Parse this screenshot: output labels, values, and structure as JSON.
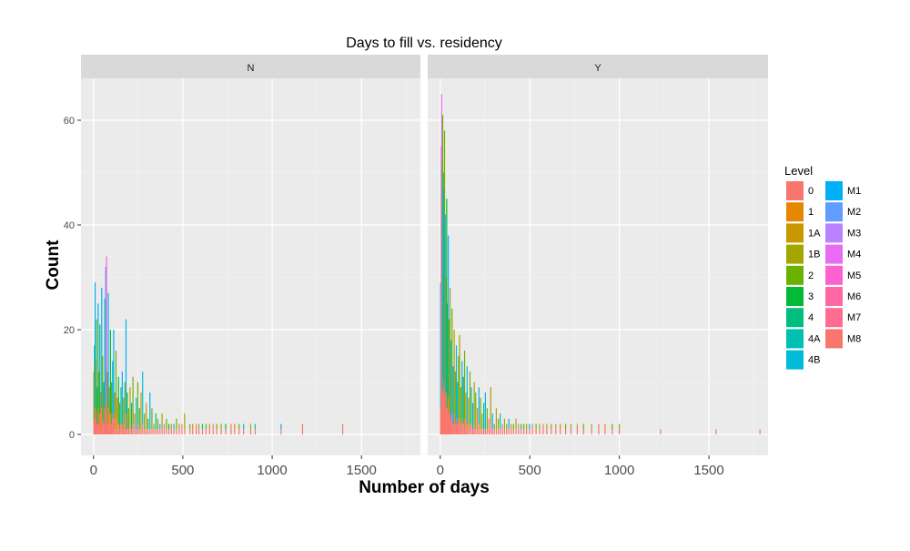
{
  "chart_data": {
    "type": "bar",
    "subtype": "stacked histogram, faceted",
    "title": "Days to fill vs. residency",
    "xlabel": "Number of days",
    "ylabel": "Count",
    "xlim": [
      -70,
      1830
    ],
    "ylim": [
      -4,
      68
    ],
    "x_ticks": [
      {
        "value": 0,
        "label": "0"
      },
      {
        "value": 500,
        "label": "500"
      },
      {
        "value": 1000,
        "label": "1000"
      },
      {
        "value": 1500,
        "label": "1500"
      }
    ],
    "y_ticks": [
      {
        "value": 0,
        "label": "0"
      },
      {
        "value": 20,
        "label": "20"
      },
      {
        "value": 40,
        "label": "40"
      },
      {
        "value": 60,
        "label": "60"
      }
    ],
    "grid": true,
    "background": "#EBEBEB",
    "legend": {
      "title": "Level",
      "position": "right",
      "columns": 2,
      "entries": [
        {
          "label": "0",
          "color": "#F8766D"
        },
        {
          "label": "1",
          "color": "#E58700"
        },
        {
          "label": "1A",
          "color": "#C99800"
        },
        {
          "label": "1B",
          "color": "#A3A500"
        },
        {
          "label": "2",
          "color": "#6BB100"
        },
        {
          "label": "3",
          "color": "#00BA38"
        },
        {
          "label": "4",
          "color": "#00BF7D"
        },
        {
          "label": "4A",
          "color": "#00C0AF"
        },
        {
          "label": "4B",
          "color": "#00BCD8"
        },
        {
          "label": "M1",
          "color": "#00B0F6"
        },
        {
          "label": "M2",
          "color": "#619CFF"
        },
        {
          "label": "M3",
          "color": "#B983FF"
        },
        {
          "label": "M4",
          "color": "#E76BF3"
        },
        {
          "label": "M5",
          "color": "#FD61D1"
        },
        {
          "label": "M6",
          "color": "#FF67A4"
        },
        {
          "label": "M7",
          "color": "#FF6C91"
        },
        {
          "label": "M8",
          "color": "#F8766D"
        }
      ]
    },
    "panels": [
      {
        "label": "N",
        "bars": [
          {
            "x": 2,
            "total": 12,
            "top": "1B"
          },
          {
            "x": 5,
            "total": 17,
            "top": "4"
          },
          {
            "x": 9,
            "total": 29,
            "top": "M1"
          },
          {
            "x": 13,
            "total": 14,
            "top": "1A"
          },
          {
            "x": 17,
            "total": 22,
            "top": "2"
          },
          {
            "x": 21,
            "total": 9,
            "top": "3"
          },
          {
            "x": 26,
            "total": 25,
            "top": "M1"
          },
          {
            "x": 31,
            "total": 12,
            "top": "2"
          },
          {
            "x": 36,
            "total": 21,
            "top": "3"
          },
          {
            "x": 41,
            "total": 8,
            "top": "1"
          },
          {
            "x": 46,
            "total": 28,
            "top": "M1"
          },
          {
            "x": 51,
            "total": 15,
            "top": "2"
          },
          {
            "x": 57,
            "total": 10,
            "top": "4"
          },
          {
            "x": 63,
            "total": 26,
            "top": "4A"
          },
          {
            "x": 68,
            "total": 32,
            "top": "M2"
          },
          {
            "x": 73,
            "total": 34,
            "top": "M5"
          },
          {
            "x": 78,
            "total": 12,
            "top": "2"
          },
          {
            "x": 83,
            "total": 27,
            "top": "M1"
          },
          {
            "x": 89,
            "total": 9,
            "top": "1B"
          },
          {
            "x": 95,
            "total": 20,
            "top": "3"
          },
          {
            "x": 101,
            "total": 10,
            "top": "2"
          },
          {
            "x": 107,
            "total": 14,
            "top": "4B"
          },
          {
            "x": 113,
            "total": 20,
            "top": "M1"
          },
          {
            "x": 119,
            "total": 8,
            "top": "1"
          },
          {
            "x": 126,
            "total": 16,
            "top": "2"
          },
          {
            "x": 133,
            "total": 7,
            "top": "1A"
          },
          {
            "x": 140,
            "total": 11,
            "top": "3"
          },
          {
            "x": 147,
            "total": 6,
            "top": "2"
          },
          {
            "x": 154,
            "total": 9,
            "top": "4A"
          },
          {
            "x": 161,
            "total": 12,
            "top": "M1"
          },
          {
            "x": 168,
            "total": 7,
            "top": "1B"
          },
          {
            "x": 175,
            "total": 10,
            "top": "2"
          },
          {
            "x": 182,
            "total": 22,
            "top": "M1"
          },
          {
            "x": 189,
            "total": 8,
            "top": "3"
          },
          {
            "x": 197,
            "total": 5,
            "top": "2"
          },
          {
            "x": 205,
            "total": 9,
            "top": "1B"
          },
          {
            "x": 213,
            "total": 6,
            "top": "4"
          },
          {
            "x": 221,
            "total": 11,
            "top": "2"
          },
          {
            "x": 230,
            "total": 4,
            "top": "1"
          },
          {
            "x": 239,
            "total": 7,
            "top": "M1"
          },
          {
            "x": 248,
            "total": 10,
            "top": "2"
          },
          {
            "x": 257,
            "total": 5,
            "top": "3"
          },
          {
            "x": 266,
            "total": 8,
            "top": "1B"
          },
          {
            "x": 275,
            "total": 12,
            "top": "4B"
          },
          {
            "x": 285,
            "total": 4,
            "top": "2"
          },
          {
            "x": 295,
            "total": 6,
            "top": "1A"
          },
          {
            "x": 305,
            "total": 3,
            "top": "3"
          },
          {
            "x": 316,
            "total": 8,
            "top": "M1"
          },
          {
            "x": 327,
            "total": 5,
            "top": "2"
          },
          {
            "x": 338,
            "total": 2,
            "top": "1B"
          },
          {
            "x": 349,
            "total": 4,
            "top": "4"
          },
          {
            "x": 360,
            "total": 3,
            "top": "2"
          },
          {
            "x": 372,
            "total": 2,
            "top": "M1"
          },
          {
            "x": 384,
            "total": 4,
            "top": "1B"
          },
          {
            "x": 396,
            "total": 2,
            "top": "0"
          },
          {
            "x": 409,
            "total": 3,
            "top": "2"
          },
          {
            "x": 422,
            "total": 2,
            "top": "3"
          },
          {
            "x": 436,
            "total": 2,
            "top": "1"
          },
          {
            "x": 450,
            "total": 2,
            "top": "4B"
          },
          {
            "x": 465,
            "total": 3,
            "top": "2"
          },
          {
            "x": 480,
            "total": 2,
            "top": "1B"
          },
          {
            "x": 495,
            "total": 2,
            "top": "0"
          },
          {
            "x": 510,
            "total": 4,
            "top": "1B"
          },
          {
            "x": 540,
            "total": 2,
            "top": "2"
          },
          {
            "x": 555,
            "total": 2,
            "top": "1"
          },
          {
            "x": 575,
            "total": 2,
            "top": "0"
          },
          {
            "x": 590,
            "total": 2,
            "top": "1B"
          },
          {
            "x": 610,
            "total": 2,
            "top": "4"
          },
          {
            "x": 630,
            "total": 2,
            "top": "2"
          },
          {
            "x": 650,
            "total": 2,
            "top": "1A"
          },
          {
            "x": 670,
            "total": 2,
            "top": "0"
          },
          {
            "x": 690,
            "total": 2,
            "top": "2"
          },
          {
            "x": 715,
            "total": 2,
            "top": "1B"
          },
          {
            "x": 740,
            "total": 2,
            "top": "3"
          },
          {
            "x": 770,
            "total": 2,
            "top": "0"
          },
          {
            "x": 790,
            "total": 2,
            "top": "1"
          },
          {
            "x": 815,
            "total": 2,
            "top": "2"
          },
          {
            "x": 840,
            "total": 2,
            "top": "M1"
          },
          {
            "x": 880,
            "total": 2,
            "top": "1B"
          },
          {
            "x": 905,
            "total": 2,
            "top": "4A"
          },
          {
            "x": 1050,
            "total": 2,
            "top": "M1"
          },
          {
            "x": 1170,
            "total": 2,
            "top": "0"
          },
          {
            "x": 1395,
            "total": 2,
            "top": "0"
          }
        ]
      },
      {
        "label": "Y",
        "bars": [
          {
            "x": 2,
            "total": 29,
            "top": "M1"
          },
          {
            "x": 5,
            "total": 55,
            "top": "M3"
          },
          {
            "x": 8,
            "total": 65,
            "top": "M4"
          },
          {
            "x": 11,
            "total": 52,
            "top": "1B"
          },
          {
            "x": 14,
            "total": 61,
            "top": "2"
          },
          {
            "x": 17,
            "total": 47,
            "top": "M1"
          },
          {
            "x": 20,
            "total": 50,
            "top": "4A"
          },
          {
            "x": 24,
            "total": 58,
            "top": "2"
          },
          {
            "x": 28,
            "total": 42,
            "top": "M1"
          },
          {
            "x": 32,
            "total": 30,
            "top": "1B"
          },
          {
            "x": 36,
            "total": 45,
            "top": "3"
          },
          {
            "x": 40,
            "total": 25,
            "top": "4"
          },
          {
            "x": 45,
            "total": 38,
            "top": "M1"
          },
          {
            "x": 50,
            "total": 22,
            "top": "2"
          },
          {
            "x": 55,
            "total": 28,
            "top": "1B"
          },
          {
            "x": 60,
            "total": 18,
            "top": "4B"
          },
          {
            "x": 66,
            "total": 24,
            "top": "2"
          },
          {
            "x": 72,
            "total": 13,
            "top": "M1"
          },
          {
            "x": 78,
            "total": 20,
            "top": "1B"
          },
          {
            "x": 84,
            "total": 12,
            "top": "2"
          },
          {
            "x": 90,
            "total": 17,
            "top": "M1"
          },
          {
            "x": 96,
            "total": 10,
            "top": "4A"
          },
          {
            "x": 102,
            "total": 15,
            "top": "2"
          },
          {
            "x": 108,
            "total": 19,
            "top": "1B"
          },
          {
            "x": 115,
            "total": 9,
            "top": "2"
          },
          {
            "x": 122,
            "total": 14,
            "top": "M1"
          },
          {
            "x": 129,
            "total": 11,
            "top": "3"
          },
          {
            "x": 136,
            "total": 16,
            "top": "2"
          },
          {
            "x": 143,
            "total": 8,
            "top": "1A"
          },
          {
            "x": 150,
            "total": 13,
            "top": "M1"
          },
          {
            "x": 158,
            "total": 7,
            "top": "1B"
          },
          {
            "x": 166,
            "total": 12,
            "top": "2"
          },
          {
            "x": 174,
            "total": 9,
            "top": "4A"
          },
          {
            "x": 182,
            "total": 6,
            "top": "M1"
          },
          {
            "x": 190,
            "total": 10,
            "top": "1B"
          },
          {
            "x": 198,
            "total": 8,
            "top": "2"
          },
          {
            "x": 207,
            "total": 5,
            "top": "1"
          },
          {
            "x": 216,
            "total": 9,
            "top": "M1"
          },
          {
            "x": 225,
            "total": 7,
            "top": "2"
          },
          {
            "x": 234,
            "total": 4,
            "top": "1B"
          },
          {
            "x": 243,
            "total": 6,
            "top": "4"
          },
          {
            "x": 252,
            "total": 8,
            "top": "M1"
          },
          {
            "x": 262,
            "total": 5,
            "top": "2"
          },
          {
            "x": 272,
            "total": 3,
            "top": "0"
          },
          {
            "x": 282,
            "total": 9,
            "top": "1B"
          },
          {
            "x": 292,
            "total": 4,
            "top": "M1"
          },
          {
            "x": 302,
            "total": 2,
            "top": "2"
          },
          {
            "x": 313,
            "total": 5,
            "top": "1A"
          },
          {
            "x": 324,
            "total": 3,
            "top": "2"
          },
          {
            "x": 335,
            "total": 4,
            "top": "4B"
          },
          {
            "x": 347,
            "total": 2,
            "top": "0"
          },
          {
            "x": 359,
            "total": 3,
            "top": "1B"
          },
          {
            "x": 371,
            "total": 2,
            "top": "2"
          },
          {
            "x": 383,
            "total": 3,
            "top": "M1"
          },
          {
            "x": 396,
            "total": 2,
            "top": "1"
          },
          {
            "x": 409,
            "total": 2,
            "top": "2"
          },
          {
            "x": 423,
            "total": 3,
            "top": "1B"
          },
          {
            "x": 437,
            "total": 2,
            "top": "0"
          },
          {
            "x": 452,
            "total": 2,
            "top": "4"
          },
          {
            "x": 467,
            "total": 2,
            "top": "2"
          },
          {
            "x": 482,
            "total": 2,
            "top": "1B"
          },
          {
            "x": 498,
            "total": 2,
            "top": "M1"
          },
          {
            "x": 515,
            "total": 2,
            "top": "0"
          },
          {
            "x": 535,
            "total": 2,
            "top": "2"
          },
          {
            "x": 555,
            "total": 2,
            "top": "1B"
          },
          {
            "x": 575,
            "total": 2,
            "top": "0"
          },
          {
            "x": 595,
            "total": 2,
            "top": "1A"
          },
          {
            "x": 620,
            "total": 2,
            "top": "2"
          },
          {
            "x": 645,
            "total": 2,
            "top": "0"
          },
          {
            "x": 670,
            "total": 2,
            "top": "1"
          },
          {
            "x": 700,
            "total": 2,
            "top": "2"
          },
          {
            "x": 730,
            "total": 2,
            "top": "1B"
          },
          {
            "x": 765,
            "total": 2,
            "top": "0"
          },
          {
            "x": 800,
            "total": 2,
            "top": "2"
          },
          {
            "x": 845,
            "total": 2,
            "top": "1B"
          },
          {
            "x": 885,
            "total": 2,
            "top": "0"
          },
          {
            "x": 920,
            "total": 2,
            "top": "1"
          },
          {
            "x": 960,
            "total": 2,
            "top": "2"
          },
          {
            "x": 1000,
            "total": 2,
            "top": "1B"
          },
          {
            "x": 1230,
            "total": 1,
            "top": "0"
          },
          {
            "x": 1540,
            "total": 1,
            "top": "M1"
          },
          {
            "x": 1785,
            "total": 1,
            "top": "1"
          }
        ]
      }
    ]
  }
}
